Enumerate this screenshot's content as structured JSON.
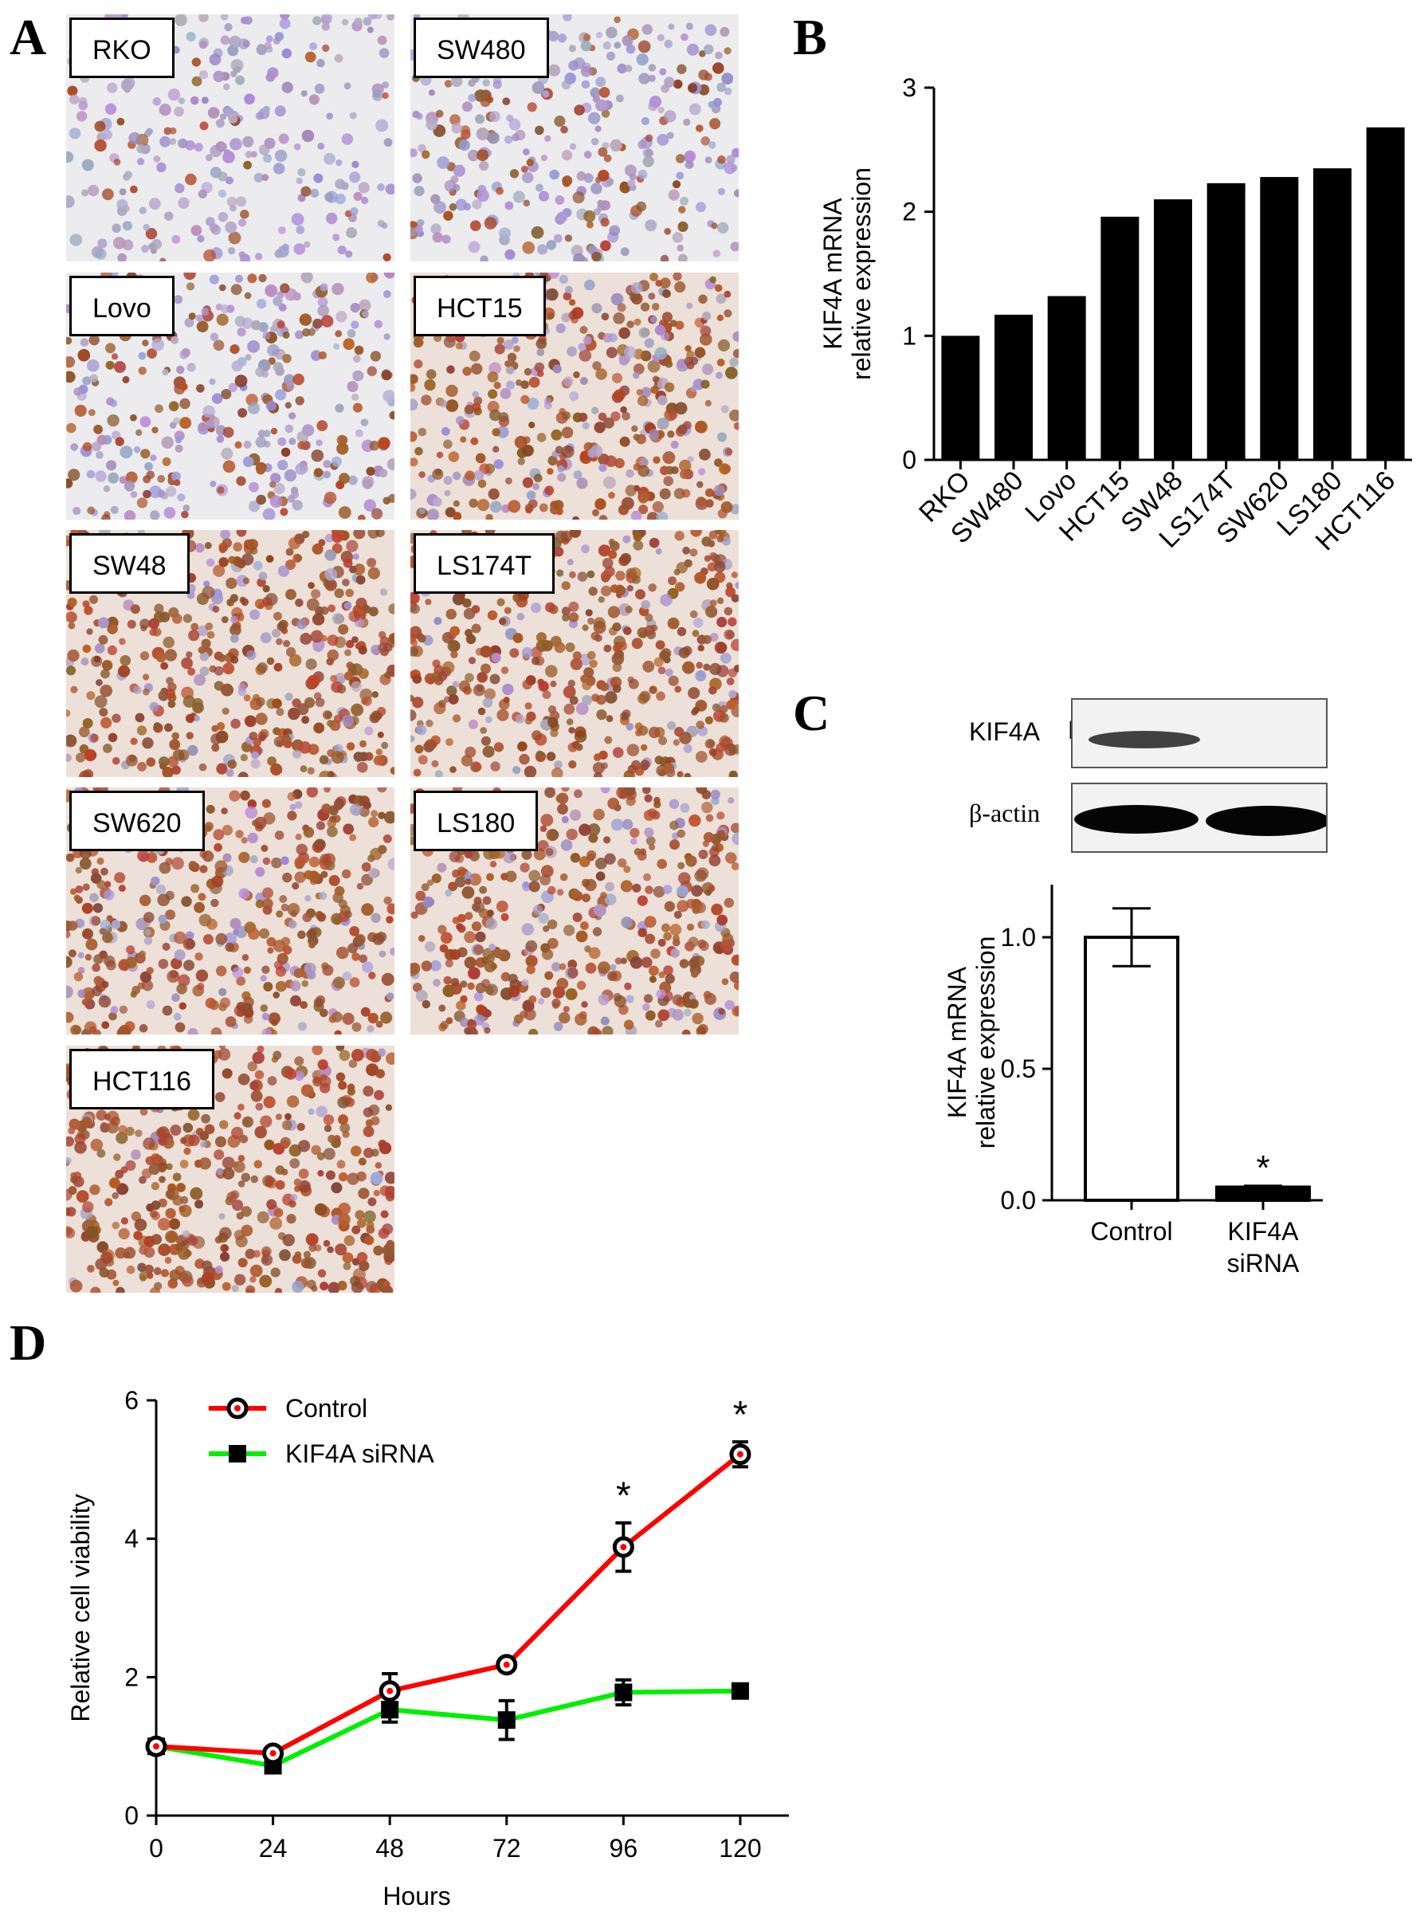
{
  "panels": {
    "a": "A",
    "b": "B",
    "c": "C",
    "d": "D"
  },
  "micrographs": [
    {
      "label": "RKO",
      "stain": 0.08
    },
    {
      "label": "SW480",
      "stain": 0.28
    },
    {
      "label": "Lovo",
      "stain": 0.38
    },
    {
      "label": "HCT15",
      "stain": 0.72
    },
    {
      "label": "SW48",
      "stain": 0.85
    },
    {
      "label": "LS174T",
      "stain": 0.88
    },
    {
      "label": "SW620",
      "stain": 0.78
    },
    {
      "label": "LS180",
      "stain": 0.82
    },
    {
      "label": "HCT116",
      "stain": 0.92
    }
  ],
  "blot": {
    "lanes": [
      "KIF4A",
      "β-actin"
    ]
  },
  "chart_data": [
    {
      "id": "B",
      "type": "bar",
      "categories": [
        "RKO",
        "SW480",
        "Lovo",
        "HCT15",
        "SW48",
        "LS174T",
        "SW620",
        "LS180",
        "HCT116"
      ],
      "values": [
        1.0,
        1.17,
        1.32,
        1.96,
        2.1,
        2.23,
        2.28,
        2.35,
        2.68
      ],
      "ylabel_line1": "KIF4A mRNA",
      "ylabel_line2": "relative expression",
      "ylim": [
        0,
        3
      ],
      "yticks": [
        "0",
        "1",
        "2",
        "3"
      ],
      "bar_color": "#000000"
    },
    {
      "id": "C",
      "type": "bar",
      "categories_line1": [
        "Control",
        "KIF4A"
      ],
      "categories_line2": [
        "",
        "siRNA"
      ],
      "values": [
        1.0,
        0.05
      ],
      "errors": [
        0.11,
        0.005
      ],
      "fills": [
        "#ffffff",
        "#000000"
      ],
      "ylabel_line1": "KIF4A mRNA",
      "ylabel_line2": "relative expression",
      "ylim": [
        0,
        1.2
      ],
      "yticks": [
        "0.0",
        "0.5",
        "1.0"
      ],
      "significance": [
        "",
        "*"
      ]
    },
    {
      "id": "D",
      "type": "line",
      "x": [
        0,
        24,
        48,
        72,
        96,
        120
      ],
      "xticks": [
        "0",
        "24",
        "48",
        "72",
        "96",
        "120"
      ],
      "yticks": [
        "0",
        "2",
        "4",
        "6"
      ],
      "xlim": [
        0,
        130
      ],
      "ylim": [
        0,
        6
      ],
      "xlabel": "Hours",
      "ylabel": "Relative cell viability",
      "series": [
        {
          "name": "Control",
          "color": "#ff0000",
          "marker": "circle",
          "values": [
            1.0,
            0.9,
            1.8,
            2.18,
            3.88,
            5.22
          ],
          "errors": [
            0.1,
            0.06,
            0.25,
            0.08,
            0.35,
            0.18
          ]
        },
        {
          "name": "KIF4A siRNA",
          "color": "#00ee00",
          "marker": "square",
          "values": [
            1.0,
            0.72,
            1.53,
            1.38,
            1.78,
            1.8
          ],
          "errors": [
            0.1,
            0.06,
            0.18,
            0.28,
            0.18,
            0.06
          ]
        }
      ],
      "significance": [
        "",
        "",
        "",
        "",
        "*",
        "*"
      ],
      "legend": "top-left"
    }
  ]
}
